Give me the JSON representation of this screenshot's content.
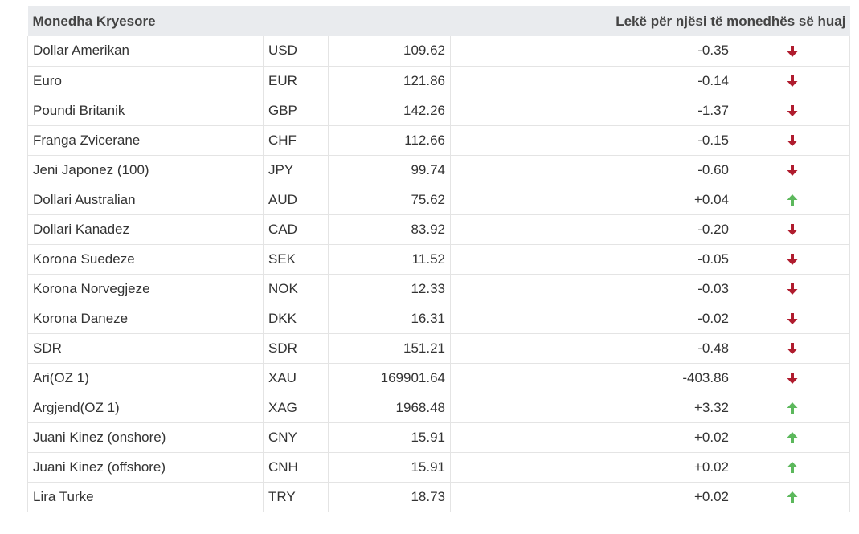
{
  "header": {
    "currency_col": "Monedha Kryesore",
    "value_col": "Lekë për njësi të monedhës së huaj"
  },
  "colors": {
    "down": "#b01c2e",
    "up": "#5cb85c",
    "header_bg": "#e9ebee"
  },
  "rows": [
    {
      "name": "Dollar Amerikan",
      "code": "USD",
      "rate": "109.62",
      "change": "-0.35",
      "direction": "down",
      "icon": "arrow-down-icon"
    },
    {
      "name": "Euro",
      "code": "EUR",
      "rate": "121.86",
      "change": "-0.14",
      "direction": "down",
      "icon": "arrow-down-icon"
    },
    {
      "name": "Poundi Britanik",
      "code": "GBP",
      "rate": "142.26",
      "change": "-1.37",
      "direction": "down",
      "icon": "arrow-down-icon"
    },
    {
      "name": "Franga Zvicerane",
      "code": "CHF",
      "rate": "112.66",
      "change": "-0.15",
      "direction": "down",
      "icon": "arrow-down-icon"
    },
    {
      "name": "Jeni Japonez (100)",
      "code": "JPY",
      "rate": "99.74",
      "change": "-0.60",
      "direction": "down",
      "icon": "arrow-down-icon"
    },
    {
      "name": "Dollari Australian",
      "code": "AUD",
      "rate": "75.62",
      "change": "+0.04",
      "direction": "up",
      "icon": "arrow-up-icon"
    },
    {
      "name": "Dollari Kanadez",
      "code": "CAD",
      "rate": "83.92",
      "change": "-0.20",
      "direction": "down",
      "icon": "arrow-down-icon"
    },
    {
      "name": "Korona Suedeze",
      "code": "SEK",
      "rate": "11.52",
      "change": "-0.05",
      "direction": "down",
      "icon": "arrow-down-icon"
    },
    {
      "name": "Korona Norvegjeze",
      "code": "NOK",
      "rate": "12.33",
      "change": "-0.03",
      "direction": "down",
      "icon": "arrow-down-icon"
    },
    {
      "name": "Korona Daneze",
      "code": "DKK",
      "rate": "16.31",
      "change": "-0.02",
      "direction": "down",
      "icon": "arrow-down-icon"
    },
    {
      "name": "SDR",
      "code": "SDR",
      "rate": "151.21",
      "change": "-0.48",
      "direction": "down",
      "icon": "arrow-down-icon"
    },
    {
      "name": "Ari(OZ 1)",
      "code": "XAU",
      "rate": "169901.64",
      "change": "-403.86",
      "direction": "down",
      "icon": "arrow-down-icon"
    },
    {
      "name": "Argjend(OZ 1)",
      "code": "XAG",
      "rate": "1968.48",
      "change": "+3.32",
      "direction": "up",
      "icon": "arrow-up-icon"
    },
    {
      "name": "Juani Kinez (onshore)",
      "code": "CNY",
      "rate": "15.91",
      "change": "+0.02",
      "direction": "up",
      "icon": "arrow-up-icon"
    },
    {
      "name": "Juani Kinez (offshore)",
      "code": "CNH",
      "rate": "15.91",
      "change": "+0.02",
      "direction": "up",
      "icon": "arrow-up-icon"
    },
    {
      "name": "Lira Turke",
      "code": "TRY",
      "rate": "18.73",
      "change": "+0.02",
      "direction": "up",
      "icon": "arrow-up-icon"
    }
  ]
}
